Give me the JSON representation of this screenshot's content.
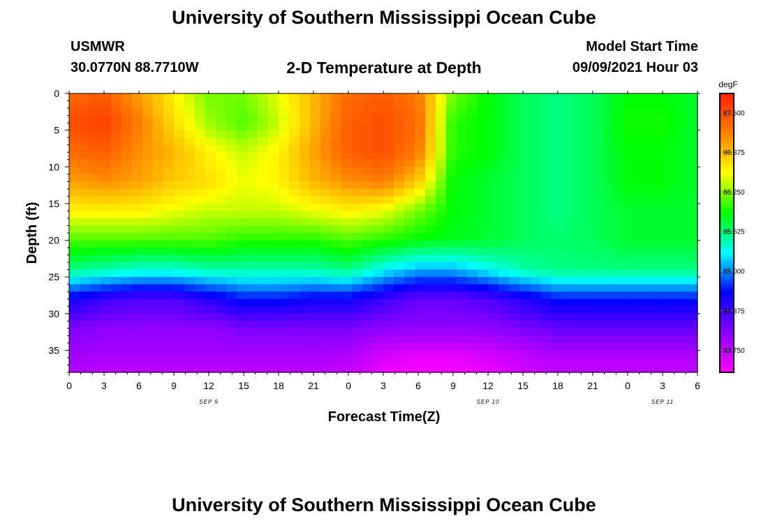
{
  "page": {
    "title_top": "University of Southern Mississippi Ocean Cube",
    "title_bottom": "University of Southern Mississippi Ocean Cube"
  },
  "header": {
    "station": "USMWR",
    "coords": "30.0770N  88.7710W",
    "chart_title": "2-D Temperature at Depth",
    "model_label": "Model Start Time",
    "model_time": "09/09/2021 Hour 03"
  },
  "colorbar": {
    "unit": "degF",
    "ticks": [
      "87.500",
      "86.875",
      "86.250",
      "85.625",
      "85.000",
      "84.375",
      "83.750"
    ],
    "range": [
      83.4,
      87.8
    ],
    "colors": [
      "#ff00ff",
      "#8a00ff",
      "#0000ff",
      "#00ffff",
      "#00ff00",
      "#ffff00",
      "#ff8000",
      "#ff2000"
    ]
  },
  "chart_data": {
    "type": "heatmap",
    "title": "2-D Temperature at Depth",
    "xlabel": "Forecast Time(Z)",
    "ylabel": "Depth (ft)",
    "units": "degF",
    "x_tick_labels": [
      "0",
      "3",
      "6",
      "9",
      "12",
      "15",
      "18",
      "21",
      "0",
      "3",
      "6",
      "9",
      "12",
      "15",
      "18",
      "21",
      "0",
      "3",
      "6"
    ],
    "x_hours": [
      0,
      3,
      6,
      9,
      12,
      15,
      18,
      21,
      24,
      27,
      30,
      33,
      36,
      39,
      42,
      45,
      48,
      51,
      54
    ],
    "date_labels": [
      {
        "label": "SEP 9",
        "hour": 12
      },
      {
        "label": "SEP 10",
        "hour": 36
      },
      {
        "label": "SEP 11",
        "hour": 51
      }
    ],
    "y_ticks": [
      0,
      5,
      10,
      15,
      20,
      25,
      30,
      35
    ],
    "ylim": [
      0,
      38
    ],
    "xlim": [
      0,
      54
    ],
    "time_hours": [
      0,
      3,
      6,
      9,
      12,
      15,
      18,
      21,
      24,
      27,
      30,
      33,
      36,
      39,
      42,
      45,
      48,
      51,
      54
    ],
    "depths_ft": [
      0,
      4,
      8,
      12,
      16,
      20,
      24,
      28,
      32,
      36,
      38
    ],
    "values": [
      [
        87.3,
        87.4,
        87.0,
        86.6,
        86.2,
        86.2,
        86.5,
        86.9,
        87.3,
        87.4,
        87.2,
        86.2,
        85.9,
        85.7,
        85.6,
        85.7,
        85.9,
        85.9,
        85.8
      ],
      [
        87.5,
        87.6,
        87.2,
        86.7,
        86.3,
        86.1,
        86.4,
        86.9,
        87.4,
        87.5,
        87.3,
        86.0,
        85.9,
        85.7,
        85.6,
        85.7,
        85.95,
        85.95,
        85.8
      ],
      [
        87.3,
        87.4,
        87.1,
        86.9,
        86.6,
        86.4,
        86.6,
        87.0,
        87.4,
        87.5,
        87.2,
        86.0,
        85.9,
        85.7,
        85.6,
        85.7,
        85.9,
        85.9,
        85.8
      ],
      [
        87.0,
        87.1,
        87.0,
        86.8,
        86.7,
        86.5,
        86.6,
        86.9,
        87.1,
        87.2,
        86.8,
        85.9,
        85.8,
        85.7,
        85.6,
        85.7,
        85.9,
        85.9,
        85.8
      ],
      [
        86.6,
        86.6,
        86.6,
        86.5,
        86.4,
        86.4,
        86.4,
        86.5,
        86.6,
        86.5,
        86.2,
        85.9,
        85.8,
        85.7,
        85.6,
        85.7,
        85.8,
        85.8,
        85.8
      ],
      [
        86.1,
        86.1,
        86.1,
        86.1,
        86.1,
        86.0,
        86.0,
        86.0,
        86.1,
        86.0,
        85.9,
        85.85,
        85.8,
        85.7,
        85.65,
        85.7,
        85.8,
        85.8,
        85.8
      ],
      [
        85.6,
        85.5,
        85.4,
        85.4,
        85.5,
        85.5,
        85.5,
        85.5,
        85.6,
        85.3,
        85.1,
        85.1,
        85.3,
        85.5,
        85.6,
        85.6,
        85.6,
        85.6,
        85.6
      ],
      [
        84.6,
        84.4,
        84.3,
        84.3,
        84.5,
        84.7,
        84.7,
        84.6,
        84.6,
        84.4,
        84.2,
        84.2,
        84.3,
        84.5,
        84.7,
        84.7,
        84.7,
        84.7,
        84.7
      ],
      [
        84.1,
        84.0,
        84.0,
        84.0,
        84.0,
        84.1,
        84.1,
        84.1,
        84.1,
        84.0,
        84.0,
        84.0,
        84.0,
        84.1,
        84.2,
        84.2,
        84.2,
        84.2,
        84.2
      ],
      [
        83.9,
        83.85,
        83.85,
        83.85,
        83.85,
        83.85,
        83.85,
        83.85,
        83.8,
        83.6,
        83.5,
        83.5,
        83.6,
        83.7,
        83.8,
        83.8,
        83.8,
        83.8,
        83.8
      ],
      [
        83.8,
        83.75,
        83.75,
        83.75,
        83.75,
        83.75,
        83.75,
        83.75,
        83.7,
        83.5,
        83.45,
        83.45,
        83.5,
        83.65,
        83.75,
        83.75,
        83.75,
        83.75,
        83.75
      ]
    ]
  }
}
